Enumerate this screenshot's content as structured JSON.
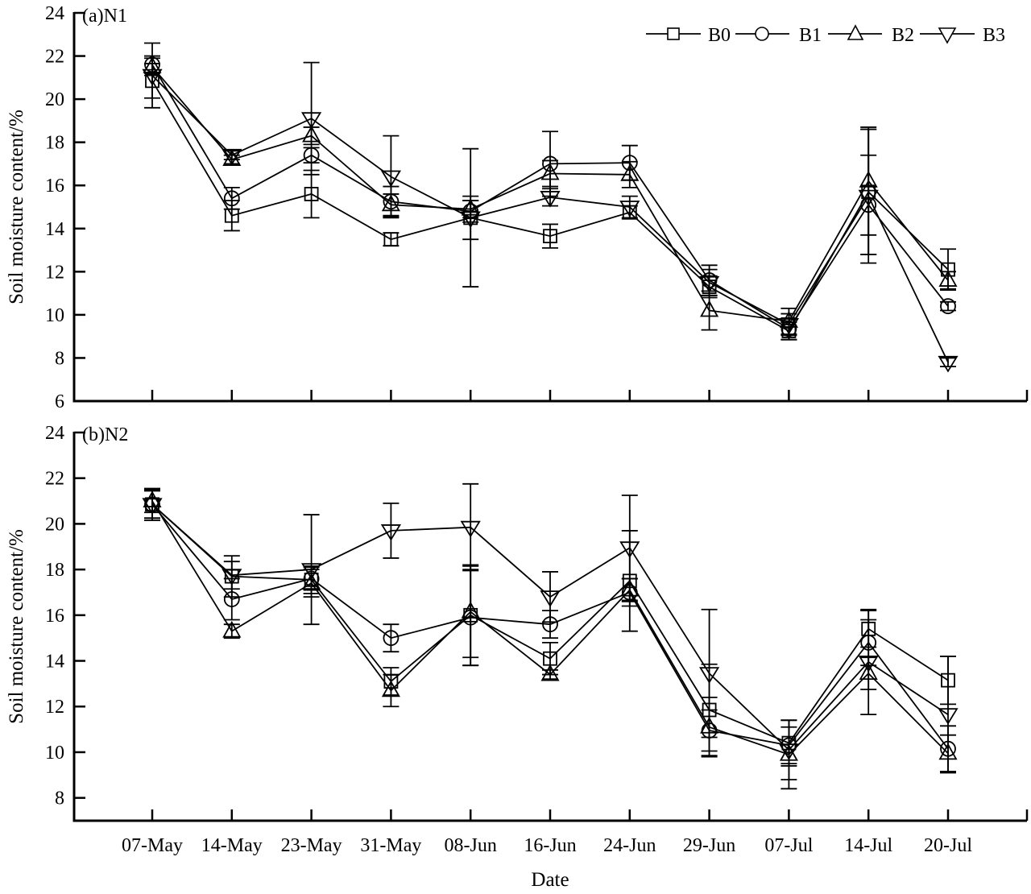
{
  "chart_data": [
    {
      "type": "line",
      "panel_label": "(a)N1",
      "xlabel": "",
      "ylabel": "Soil moisture content/%",
      "ylim": [
        6,
        24
      ],
      "yticks": [
        6,
        8,
        10,
        12,
        14,
        16,
        18,
        20,
        22,
        24
      ],
      "categories": [
        "07-May",
        "14-May",
        "23-May",
        "31-May",
        "08-Jun",
        "16-Jun",
        "24-Jun",
        "29-Jun",
        "07-Jul",
        "14-Jul",
        "20-Jul"
      ],
      "show_xticklabels": false,
      "legend": {
        "placement": "top-right",
        "entries": [
          "B0",
          "B1",
          "B2",
          "B3"
        ]
      },
      "grid": false,
      "series": [
        {
          "name": "B0",
          "marker": "square",
          "values": [
            20.85,
            14.6,
            15.6,
            13.5,
            14.5,
            13.65,
            14.75,
            11.3,
            9.25,
            15.7,
            12.1
          ],
          "errors": [
            0.8,
            0.7,
            1.1,
            0.3,
            1.0,
            0.55,
            0.3,
            0.5,
            0.4,
            2.9,
            0.95
          ]
        },
        {
          "name": "B1",
          "marker": "circle",
          "values": [
            21.6,
            15.4,
            17.4,
            15.25,
            14.8,
            17.0,
            17.05,
            11.6,
            9.35,
            15.1,
            10.4
          ],
          "errors": [
            0.4,
            0.5,
            0.35,
            0.7,
            0.5,
            1.5,
            0.8,
            0.7,
            0.5,
            2.3,
            0.2
          ]
        },
        {
          "name": "B2",
          "marker": "triangle-up",
          "values": [
            21.5,
            17.2,
            18.3,
            15.1,
            14.9,
            16.55,
            16.5,
            10.2,
            9.7,
            16.2,
            11.6
          ],
          "errors": [
            0.4,
            0.2,
            0.4,
            0.5,
            0.4,
            0.6,
            0.6,
            0.9,
            0.6,
            2.5,
            0.4
          ]
        },
        {
          "name": "B3",
          "marker": "triangle-down",
          "values": [
            21.1,
            17.4,
            19.1,
            16.4,
            14.5,
            15.45,
            15.0,
            11.5,
            9.55,
            15.5,
            7.8
          ],
          "errors": [
            1.5,
            0.2,
            2.6,
            1.9,
            3.2,
            0.4,
            0.5,
            0.6,
            0.5,
            3.1,
            0.2
          ]
        }
      ]
    },
    {
      "type": "line",
      "panel_label": "(b)N2",
      "xlabel": "Date",
      "ylabel": "Soil moisture content/%",
      "ylim": [
        7,
        24
      ],
      "yticks": [
        8,
        10,
        12,
        14,
        16,
        18,
        20,
        22,
        24
      ],
      "categories": [
        "07-May",
        "14-May",
        "23-May",
        "31-May",
        "08-Jun",
        "16-Jun",
        "24-Jun",
        "29-Jun",
        "07-Jul",
        "14-Jul",
        "20-Jul"
      ],
      "show_xticklabels": true,
      "grid": false,
      "series": [
        {
          "name": "B0",
          "marker": "square",
          "values": [
            20.85,
            17.7,
            17.55,
            13.1,
            16.0,
            14.1,
            17.5,
            11.85,
            10.4,
            15.4,
            13.15
          ],
          "errors": [
            0.7,
            0.9,
            0.6,
            0.6,
            2.2,
            0.7,
            2.2,
            2.0,
            1.0,
            0.8,
            1.05
          ]
        },
        {
          "name": "B1",
          "marker": "circle",
          "values": [
            20.85,
            16.7,
            17.6,
            15.0,
            15.9,
            15.6,
            17.0,
            10.95,
            10.3,
            14.8,
            10.15
          ],
          "errors": [
            0.6,
            0.9,
            0.5,
            0.6,
            2.1,
            0.6,
            0.6,
            0.9,
            0.8,
            1.0,
            1.0
          ]
        },
        {
          "name": "B2",
          "marker": "triangle-up",
          "values": [
            21.0,
            15.3,
            17.4,
            12.7,
            16.15,
            13.4,
            17.1,
            11.1,
            9.9,
            13.45,
            9.95
          ],
          "errors": [
            0.5,
            0.3,
            0.6,
            0.7,
            2.0,
            0.2,
            0.5,
            1.3,
            1.5,
            0.7,
            0.8
          ]
        },
        {
          "name": "B3",
          "marker": "triangle-down",
          "values": [
            20.85,
            17.75,
            18.0,
            19.7,
            19.85,
            16.8,
            18.95,
            13.45,
            10.1,
            13.95,
            11.65
          ],
          "errors": [
            0.6,
            0.6,
            2.4,
            1.2,
            1.9,
            1.1,
            2.3,
            2.8,
            1.3,
            2.3,
            2.55
          ]
        }
      ]
    }
  ]
}
